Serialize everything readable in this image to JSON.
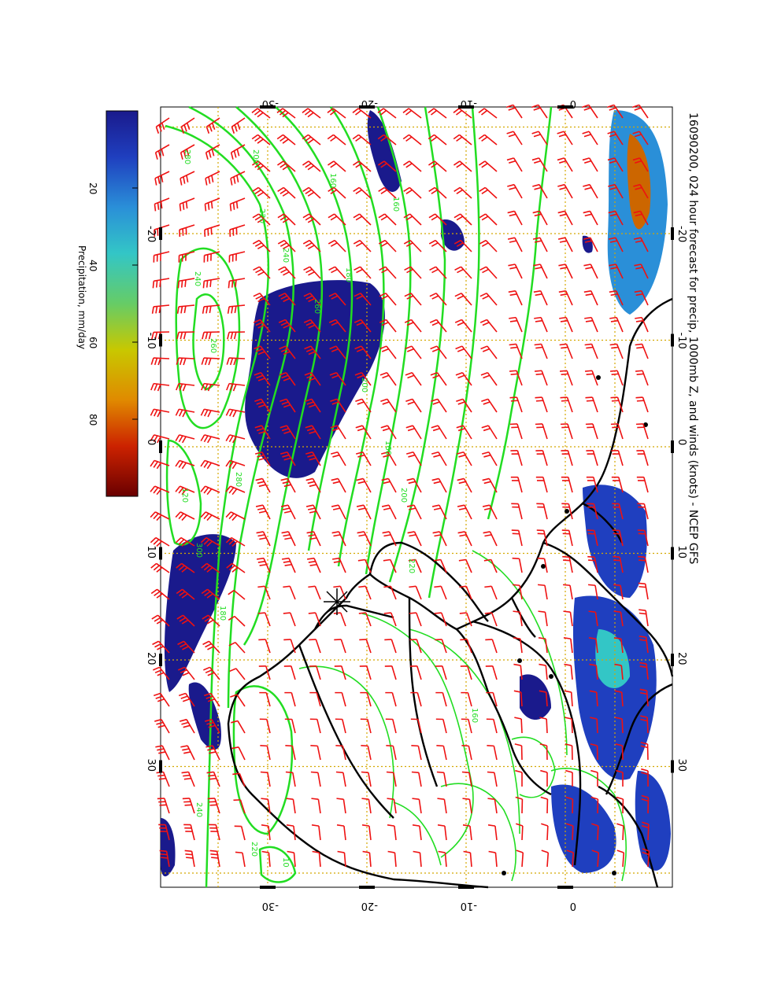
{
  "title": "16090200, 024 hour forecast for precip, 1000mb Z, and winds (knots) - NCEP GFS",
  "colorbar": {
    "label": "Precipitation, mm/day",
    "ticks": [
      "20",
      "40",
      "60",
      "80"
    ],
    "tick_values": [
      20,
      40,
      60,
      80
    ],
    "range": [
      0,
      100
    ],
    "colors": [
      "#1a1a8c",
      "#1f3fbf",
      "#2a8fd8",
      "#33c6c6",
      "#66cc66",
      "#c8c800",
      "#e08a00",
      "#cc2200",
      "#6a0000"
    ]
  },
  "axes": {
    "lon_ticks": [
      "-20",
      "-10",
      "0",
      "10",
      "20",
      "30"
    ],
    "lon_values": [
      -20,
      -10,
      0,
      10,
      20,
      30
    ],
    "lat_ticks": [
      "-30",
      "-20",
      "-10",
      "0"
    ],
    "lat_values": [
      -30,
      -20,
      -10,
      0
    ],
    "lon_range": [
      -30,
      42
    ],
    "lat_range": [
      -38,
      5
    ]
  },
  "contour_labels": [
    "280",
    "240",
    "260",
    "280",
    "200",
    "220",
    "240",
    "160",
    "180",
    "160",
    "120",
    "300",
    "260",
    "200",
    "160",
    "220",
    "160",
    "240",
    "220",
    "10",
    "180",
    "200"
  ],
  "colors": {
    "contour": "#22dd22",
    "wind_barb": "#ee1111",
    "grid": "#d4a800",
    "coast": "#000000",
    "precip_dark": "#1a1a8c"
  }
}
